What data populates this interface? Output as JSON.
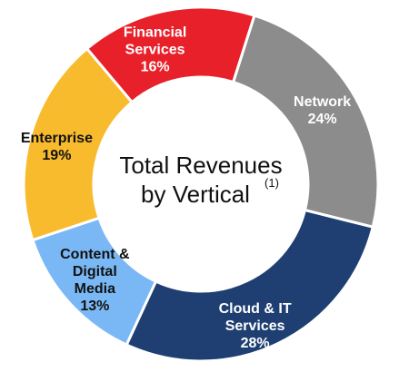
{
  "chart_data": {
    "type": "pie",
    "style": "donut",
    "title": "",
    "center_text": {
      "line1": "Total Revenues",
      "line2": "by Vertical",
      "footnote": "(1)"
    },
    "unit": "%",
    "slices": [
      {
        "label_lines": [
          "Financial",
          "Services"
        ],
        "value": 16,
        "value_label": "16%",
        "color": "#e8202a",
        "text_color": "#ffffff"
      },
      {
        "label_lines": [
          "Network"
        ],
        "value": 24,
        "value_label": "24%",
        "color": "#8c8c8c",
        "text_color": "#ffffff"
      },
      {
        "label_lines": [
          "Cloud & IT",
          "Services"
        ],
        "value": 28,
        "value_label": "28%",
        "color": "#1f3f73",
        "text_color": "#ffffff"
      },
      {
        "label_lines": [
          "Content &",
          "Digital",
          "Media"
        ],
        "value": 13,
        "value_label": "13%",
        "color": "#7ab8f5",
        "text_color": "#111111"
      },
      {
        "label_lines": [
          "Enterprise"
        ],
        "value": 19,
        "value_label": "19%",
        "color": "#f8bb2e",
        "text_color": "#111111"
      }
    ]
  }
}
